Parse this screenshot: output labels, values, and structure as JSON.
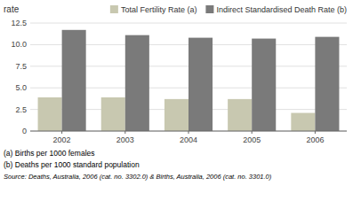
{
  "chart_data": {
    "type": "bar",
    "ylabel": "rate",
    "categories": [
      "2002",
      "2003",
      "2004",
      "2005",
      "2006"
    ],
    "series": [
      {
        "name": "Total Fertility Rate (a)",
        "color": "#c8c8b0",
        "values": [
          3.9,
          3.9,
          3.7,
          3.7,
          2.1
        ]
      },
      {
        "name": "Indirect Standardised Death Rate (b)",
        "color": "#7a7a7a",
        "values": [
          11.7,
          11.1,
          10.8,
          10.7,
          10.9
        ]
      }
    ],
    "ylim": [
      0,
      12.5
    ],
    "yticks": [
      0,
      2.5,
      {
        "value": 5.0,
        "label": "5.0"
      },
      7.5,
      {
        "value": 10.0,
        "label": "10.0"
      },
      12.5
    ],
    "grid": true,
    "legend": "upper right",
    "annotations": [
      "(a) Births per 1000 females",
      "(b) Deaths per 1000 standard population",
      "Source: Deaths, Australia, 2006 (cat. no. 3302.0) & Births, Australia, 2006 (cat. no. 3301.0)"
    ]
  }
}
